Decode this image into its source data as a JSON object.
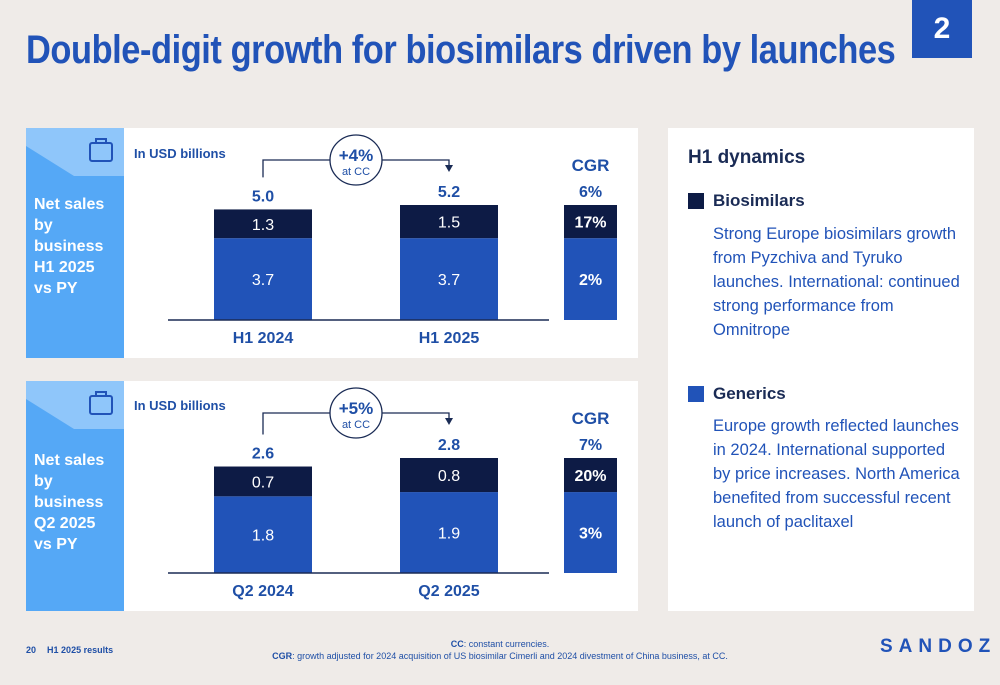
{
  "title": "Double-digit growth for biosimilars driven by launches",
  "page_badge": "2",
  "colors": {
    "biosimilars": "#0d1b45",
    "generics": "#2153b8",
    "accent_light": "#55a8f6"
  },
  "icons": {
    "panel_icon": "briefcase-icon"
  },
  "panels": [
    {
      "side_label": [
        "Net sales by",
        "business",
        "H1 2025",
        "vs PY"
      ],
      "unit": "In USD billions",
      "growth": {
        "value": "+4%",
        "sub": "at CC"
      },
      "cgr_title": "CGR"
    },
    {
      "side_label": [
        "Net sales by",
        "business",
        "Q2 2025",
        "vs PY"
      ],
      "unit": "In USD billions",
      "growth": {
        "value": "+5%",
        "sub": "at CC"
      },
      "cgr_title": "CGR"
    }
  ],
  "chart_data": [
    {
      "type": "bar",
      "stacked": true,
      "categories": [
        "H1 2024",
        "H1 2025"
      ],
      "series": [
        {
          "name": "Generics",
          "values": [
            3.7,
            3.7
          ],
          "labels": [
            "3.7",
            "3.7"
          ]
        },
        {
          "name": "Biosimilars",
          "values": [
            1.3,
            1.5
          ],
          "labels": [
            "1.3",
            "1.5"
          ]
        }
      ],
      "totals": [
        "5.0",
        "5.2"
      ],
      "cgr": {
        "total": "6%",
        "biosimilars": "17%",
        "generics": "2%"
      }
    },
    {
      "type": "bar",
      "stacked": true,
      "categories": [
        "Q2 2024",
        "Q2 2025"
      ],
      "series": [
        {
          "name": "Generics",
          "values": [
            1.8,
            1.9
          ],
          "labels": [
            "1.8",
            "1.9"
          ]
        },
        {
          "name": "Biosimilars",
          "values": [
            0.7,
            0.8
          ],
          "labels": [
            "0.7",
            "0.8"
          ]
        }
      ],
      "totals": [
        "2.6",
        "2.8"
      ],
      "cgr": {
        "total": "7%",
        "biosimilars": "20%",
        "generics": "3%"
      }
    }
  ],
  "dynamics": {
    "title": "H1 dynamics",
    "items": [
      {
        "label": "Biosimilars",
        "lines": [
          "Strong Europe biosimilars growth",
          "from Pyzchiva and Tyruko",
          "launches. International: continued",
          "strong performance from",
          "Omnitrope"
        ]
      },
      {
        "label": "Generics",
        "lines": [
          "Europe growth reflected launches",
          "in 2024. International supported",
          "by price increases. North America",
          "benefited from successful recent",
          "launch of paclitaxel"
        ]
      }
    ]
  },
  "footer": {
    "page_number": "20",
    "doc_name": "H1 2025 results",
    "note1_key": "CC",
    "note1_text": ": constant currencies.",
    "note2_key": "CGR",
    "note2_text": ": growth adjusted for 2024 acquisition of US biosimilar Cimerli and 2024 divestment of China business, at CC."
  },
  "logo": "SANDOZ"
}
